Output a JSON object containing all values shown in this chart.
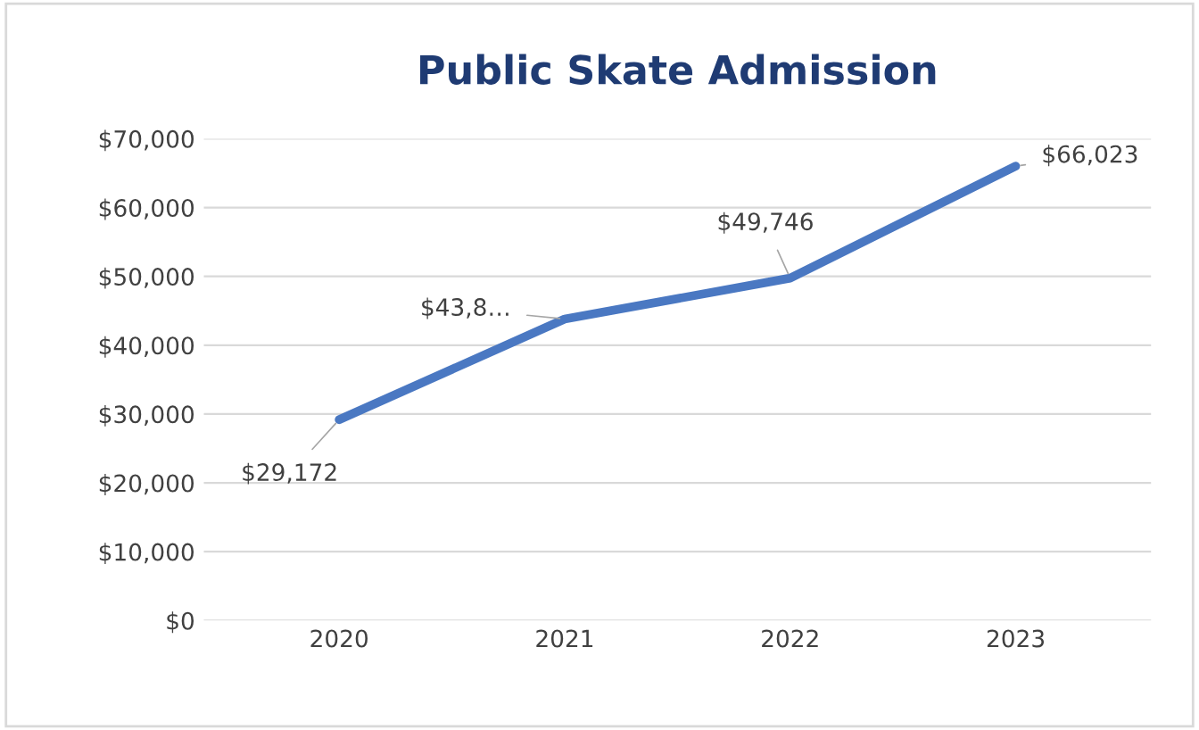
{
  "chart_data": {
    "type": "line",
    "title": "Public Skate Admission",
    "categories": [
      "2020",
      "2021",
      "2022",
      "2023"
    ],
    "series": [
      {
        "color": "#4a78c2",
        "values": [
          29172,
          43800,
          49746,
          66023
        ],
        "value_labels": [
          "$29,172",
          "$43,8…",
          "$49,746",
          "$66,023"
        ]
      }
    ],
    "ylim": [
      0,
      70000
    ],
    "yticks": [
      {
        "value": 0,
        "label": "$0"
      },
      {
        "value": 10000,
        "label": "$10,000"
      },
      {
        "value": 20000,
        "label": "$20,000"
      },
      {
        "value": 30000,
        "label": "$30,000"
      },
      {
        "value": 40000,
        "label": "$40,000"
      },
      {
        "value": 50000,
        "label": "$50,000"
      },
      {
        "value": 60000,
        "label": "$60,000"
      },
      {
        "value": 70000,
        "label": "$70,000"
      }
    ],
    "grid": "y",
    "marker": "none",
    "line_style": "solid"
  }
}
